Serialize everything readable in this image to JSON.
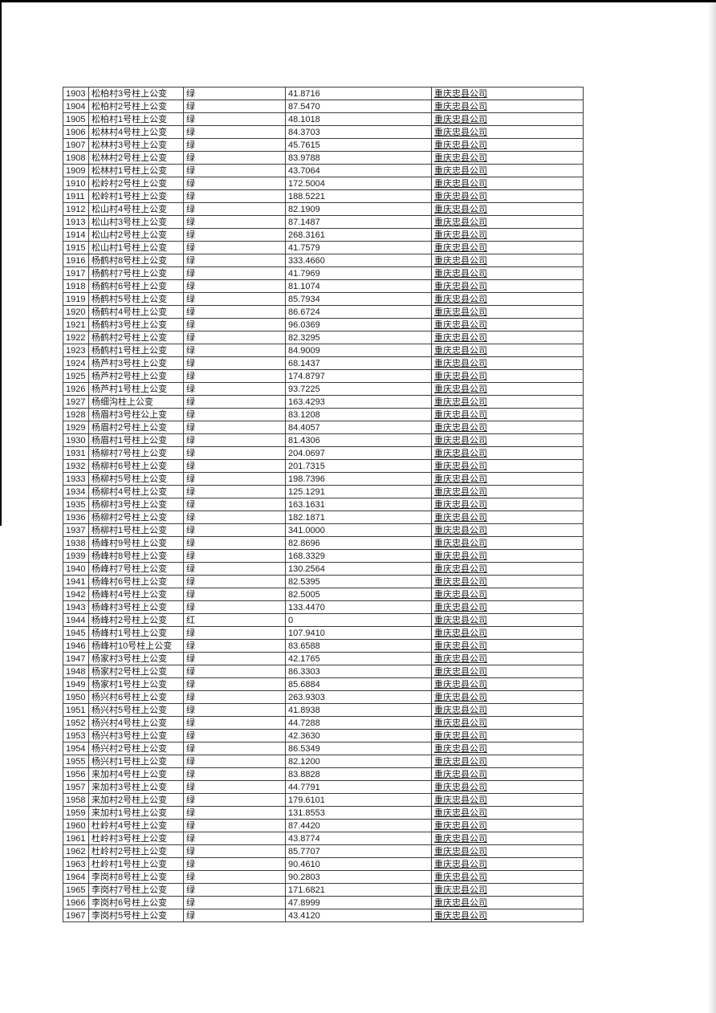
{
  "page": {
    "background": "#ffffff",
    "top_edge_color": "#000000",
    "left_edge_color": "#000000",
    "border_color": "#3c3c3c",
    "text_color": "#1a1a1a"
  },
  "table": {
    "columns": [
      "no",
      "name",
      "status",
      "value",
      "company"
    ],
    "status_values": {
      "green": "绿",
      "red": "红"
    },
    "rows": [
      [
        "1903",
        "松柏村3号柱上公变",
        "绿",
        "41.8716",
        "重庆忠县公司"
      ],
      [
        "1904",
        "松柏村2号柱上公变",
        "绿",
        "87.5470",
        "重庆忠县公司"
      ],
      [
        "1905",
        "松柏村1号柱上公变",
        "绿",
        "48.1018",
        "重庆忠县公司"
      ],
      [
        "1906",
        "松林村4号柱上公变",
        "绿",
        "84.3703",
        "重庆忠县公司"
      ],
      [
        "1907",
        "松林村3号柱上公变",
        "绿",
        "45.7615",
        "重庆忠县公司"
      ],
      [
        "1908",
        "松林村2号柱上公变",
        "绿",
        "83.9788",
        "重庆忠县公司"
      ],
      [
        "1909",
        "松林村1号柱上公变",
        "绿",
        "43.7064",
        "重庆忠县公司"
      ],
      [
        "1910",
        "松岭村2号柱上公变",
        "绿",
        "172.5004",
        "重庆忠县公司"
      ],
      [
        "1911",
        "松岭村1号柱上公变",
        "绿",
        "188.5221",
        "重庆忠县公司"
      ],
      [
        "1912",
        "松山村4号柱上公变",
        "绿",
        "82.1909",
        "重庆忠县公司"
      ],
      [
        "1913",
        "松山村3号柱上公变",
        "绿",
        "87.1487",
        "重庆忠县公司"
      ],
      [
        "1914",
        "松山村2号柱上公变",
        "绿",
        "268.3161",
        "重庆忠县公司"
      ],
      [
        "1915",
        "松山村1号柱上公变",
        "绿",
        "41.7579",
        "重庆忠县公司"
      ],
      [
        "1916",
        "杨鹤村8号柱上公变",
        "绿",
        "333.4660",
        "重庆忠县公司"
      ],
      [
        "1917",
        "杨鹤村7号柱上公变",
        "绿",
        "41.7969",
        "重庆忠县公司"
      ],
      [
        "1918",
        "杨鹤村6号柱上公变",
        "绿",
        "81.1074",
        "重庆忠县公司"
      ],
      [
        "1919",
        "杨鹤村5号柱上公变",
        "绿",
        "85.7934",
        "重庆忠县公司"
      ],
      [
        "1920",
        "杨鹤村4号柱上公变",
        "绿",
        "86.6724",
        "重庆忠县公司"
      ],
      [
        "1921",
        "杨鹤村3号柱上公变",
        "绿",
        "96.0369",
        "重庆忠县公司"
      ],
      [
        "1922",
        "杨鹤村2号柱上公变",
        "绿",
        "82.3295",
        "重庆忠县公司"
      ],
      [
        "1923",
        "杨鹤村1号柱上公变",
        "绿",
        "84.9009",
        "重庆忠县公司"
      ],
      [
        "1924",
        "杨芦村3号柱上公变",
        "绿",
        "68.1437",
        "重庆忠县公司"
      ],
      [
        "1925",
        "杨芦村2号柱上公变",
        "绿",
        "174.8797",
        "重庆忠县公司"
      ],
      [
        "1926",
        "杨芦村1号柱上公变",
        "绿",
        "93.7225",
        "重庆忠县公司"
      ],
      [
        "1927",
        "杨细沟柱上公变",
        "绿",
        "163.4293",
        "重庆忠县公司"
      ],
      [
        "1928",
        "杨眉村3号柱公上变",
        "绿",
        "83.1208",
        "重庆忠县公司"
      ],
      [
        "1929",
        "杨眉村2号柱上公变",
        "绿",
        "84.4057",
        "重庆忠县公司"
      ],
      [
        "1930",
        "杨眉村1号柱上公变",
        "绿",
        "81.4306",
        "重庆忠县公司"
      ],
      [
        "1931",
        "杨柳村7号柱上公变",
        "绿",
        "204.0697",
        "重庆忠县公司"
      ],
      [
        "1932",
        "杨柳村6号柱上公变",
        "绿",
        "201.7315",
        "重庆忠县公司"
      ],
      [
        "1933",
        "杨柳村5号柱上公变",
        "绿",
        "198.7396",
        "重庆忠县公司"
      ],
      [
        "1934",
        "杨柳村4号柱上公变",
        "绿",
        "125.1291",
        "重庆忠县公司"
      ],
      [
        "1935",
        "杨柳村3号柱上公变",
        "绿",
        "163.1631",
        "重庆忠县公司"
      ],
      [
        "1936",
        "杨柳村2号柱上公变",
        "绿",
        "182.1871",
        "重庆忠县公司"
      ],
      [
        "1937",
        "杨柳村1号柱上公变",
        "绿",
        "341.0000",
        "重庆忠县公司"
      ],
      [
        "1938",
        "杨峰村9号柱上公变",
        "绿",
        "82.8696",
        "重庆忠县公司"
      ],
      [
        "1939",
        "杨峰村8号柱上公变",
        "绿",
        "168.3329",
        "重庆忠县公司"
      ],
      [
        "1940",
        "杨峰村7号柱上公变",
        "绿",
        "130.2564",
        "重庆忠县公司"
      ],
      [
        "1941",
        "杨峰村6号柱上公变",
        "绿",
        "82.5395",
        "重庆忠县公司"
      ],
      [
        "1942",
        "杨峰村4号柱上公变",
        "绿",
        "82.5005",
        "重庆忠县公司"
      ],
      [
        "1943",
        "杨峰村3号柱上公变",
        "绿",
        "133.4470",
        "重庆忠县公司"
      ],
      [
        "1944",
        "杨峰村2号柱上公变",
        "红",
        "0",
        "重庆忠县公司"
      ],
      [
        "1945",
        "杨峰村1号柱上公变",
        "绿",
        "107.9410",
        "重庆忠县公司"
      ],
      [
        "1946",
        "杨峰村10号柱上公变",
        "绿",
        "83.6588",
        "重庆忠县公司"
      ],
      [
        "1947",
        "杨家村3号柱上公变",
        "绿",
        "42.1765",
        "重庆忠县公司"
      ],
      [
        "1948",
        "杨家村2号柱上公变",
        "绿",
        "86.3303",
        "重庆忠县公司"
      ],
      [
        "1949",
        "杨家村1号柱上公变",
        "绿",
        "85.6884",
        "重庆忠县公司"
      ],
      [
        "1950",
        "杨兴村6号柱上公变",
        "绿",
        "263.9303",
        "重庆忠县公司"
      ],
      [
        "1951",
        "杨兴村5号柱上公变",
        "绿",
        "41.8938",
        "重庆忠县公司"
      ],
      [
        "1952",
        "杨兴村4号柱上公变",
        "绿",
        "44.7288",
        "重庆忠县公司"
      ],
      [
        "1953",
        "杨兴村3号柱上公变",
        "绿",
        "42.3630",
        "重庆忠县公司"
      ],
      [
        "1954",
        "杨兴村2号柱上公变",
        "绿",
        "86.5349",
        "重庆忠县公司"
      ],
      [
        "1955",
        "杨兴村1号柱上公变",
        "绿",
        "82.1200",
        "重庆忠县公司"
      ],
      [
        "1956",
        "来加村4号柱上公变",
        "绿",
        "83.8828",
        "重庆忠县公司"
      ],
      [
        "1957",
        "来加村3号柱上公变",
        "绿",
        "44.7791",
        "重庆忠县公司"
      ],
      [
        "1958",
        "来加村2号柱上公变",
        "绿",
        "179.6101",
        "重庆忠县公司"
      ],
      [
        "1959",
        "来加村1号柱上公变",
        "绿",
        "131.8553",
        "重庆忠县公司"
      ],
      [
        "1960",
        "杜岭村4号柱上公变",
        "绿",
        "87.4420",
        "重庆忠县公司"
      ],
      [
        "1961",
        "杜岭村3号柱上公变",
        "绿",
        "43.8774",
        "重庆忠县公司"
      ],
      [
        "1962",
        "杜岭村2号柱上公变",
        "绿",
        "85.7707",
        "重庆忠县公司"
      ],
      [
        "1963",
        "杜岭村1号柱上公变",
        "绿",
        "90.4610",
        "重庆忠县公司"
      ],
      [
        "1964",
        "李岗村8号柱上公变",
        "绿",
        "90.2803",
        "重庆忠县公司"
      ],
      [
        "1965",
        "李岗村7号柱上公变",
        "绿",
        "171.6821",
        "重庆忠县公司"
      ],
      [
        "1966",
        "李岗村6号柱上公变",
        "绿",
        "47.8999",
        "重庆忠县公司"
      ],
      [
        "1967",
        "李岗村5号柱上公变",
        "绿",
        "43.4120",
        "重庆忠县公司"
      ]
    ]
  }
}
